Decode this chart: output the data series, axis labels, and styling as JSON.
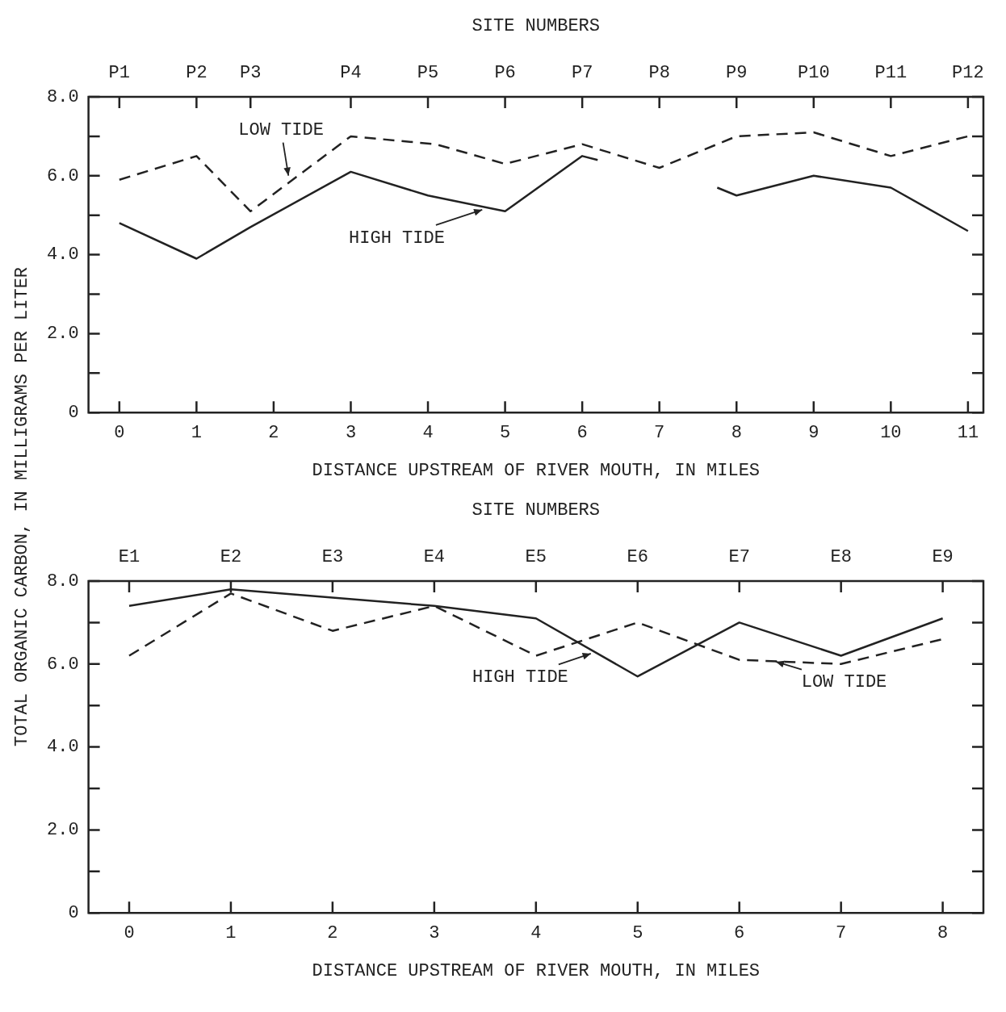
{
  "chart_data": [
    {
      "type": "line",
      "xlabel": "DISTANCE UPSTREAM OF RIVER MOUTH, IN MILES",
      "ylabel": "TOTAL ORGANIC CARBON, IN MILLIGRAMS PER LITER",
      "xlim": [
        -0.4,
        11.2
      ],
      "xticks": [
        0,
        1,
        2,
        3,
        4,
        5,
        6,
        7,
        8,
        9,
        10,
        11
      ],
      "ylim": [
        0,
        8
      ],
      "yticks": [
        0,
        {
          "value": 1,
          "label": null
        },
        {
          "value": 2,
          "label": "2.0"
        },
        {
          "value": 3,
          "label": null
        },
        {
          "value": 4,
          "label": "4.0"
        },
        {
          "value": 5,
          "label": null
        },
        {
          "value": 6,
          "label": "6.0"
        },
        {
          "value": 7,
          "label": null
        },
        {
          "value": 8,
          "label": "8.0"
        }
      ],
      "grid": false,
      "marker": "none",
      "series": [
        {
          "color": "#222222",
          "line_style": "solid",
          "x": [
            0,
            1,
            1.7,
            3,
            4,
            5,
            6,
            6.2,
            7,
            7.75,
            8,
            9,
            10,
            11
          ],
          "values": [
            4.8,
            3.9,
            4.7,
            6.1,
            5.5,
            5.1,
            6.5,
            6.4,
            null,
            5.7,
            5.5,
            6.0,
            5.7,
            4.6
          ]
        },
        {
          "color": "#222222",
          "line_style": "dashed",
          "x": [
            0,
            1,
            1.7,
            3,
            4.1,
            5,
            6,
            7,
            8,
            9,
            10,
            11
          ],
          "values": [
            5.9,
            6.5,
            5.1,
            7.0,
            6.8,
            6.3,
            6.8,
            6.2,
            7.0,
            7.1,
            6.5,
            7.0
          ]
        }
      ],
      "annotations": [
        {
          "text": "LOW TIDE",
          "x": 2.2,
          "y": 5.9
        },
        {
          "text": "HIGH TIDE",
          "x": 4.8,
          "y": 5.2
        },
        "SITE NUMBERS",
        {
          "text": "P1",
          "x": 0
        },
        {
          "text": "P2",
          "x": 1
        },
        {
          "text": "P3",
          "x": 1.7
        },
        {
          "text": "P4",
          "x": 3
        },
        {
          "text": "P5",
          "x": 4
        },
        {
          "text": "P6",
          "x": 5
        },
        {
          "text": "P7",
          "x": 6
        },
        {
          "text": "P8",
          "x": 7
        },
        {
          "text": "P9",
          "x": 8
        },
        {
          "text": "P10",
          "x": 9
        },
        {
          "text": "P11",
          "x": 10
        },
        {
          "text": "P12",
          "x": 11
        }
      ]
    },
    {
      "type": "line",
      "xlabel": "DISTANCE UPSTREAM OF RIVER MOUTH, IN MILES",
      "xlim": [
        -0.4,
        8.4
      ],
      "xticks": [
        0,
        1,
        2,
        3,
        4,
        5,
        6,
        7,
        8
      ],
      "ylim": [
        0,
        8
      ],
      "yticks": [
        0,
        {
          "value": 1,
          "label": null
        },
        {
          "value": 2,
          "label": "2.0"
        },
        {
          "value": 3,
          "label": null
        },
        {
          "value": 4,
          "label": "4.0"
        },
        {
          "value": 5,
          "label": null
        },
        {
          "value": 6,
          "label": "6.0"
        },
        {
          "value": 7,
          "label": null
        },
        {
          "value": 8,
          "label": "8.0"
        }
      ],
      "grid": false,
      "marker": "none",
      "series": [
        {
          "color": "#222222",
          "line_style": "solid",
          "x": [
            0,
            1,
            3,
            4,
            5,
            6,
            7,
            8
          ],
          "values": [
            7.4,
            7.8,
            7.4,
            7.1,
            5.7,
            7.0,
            6.2,
            7.1
          ]
        },
        {
          "color": "#222222",
          "line_style": "dashed",
          "x": [
            0,
            1,
            2,
            3,
            4,
            5,
            6,
            7,
            8
          ],
          "values": [
            6.2,
            7.7,
            6.8,
            7.4,
            6.2,
            7.0,
            6.1,
            6.0,
            6.6
          ]
        }
      ],
      "annotations": [
        {
          "text": "HIGH TIDE",
          "x": 4.6,
          "y": 6.3
        },
        {
          "text": "LOW TIDE",
          "x": 6.3,
          "y": 6.1
        },
        "SITE NUMBERS",
        {
          "text": "E1",
          "x": 0
        },
        {
          "text": "E2",
          "x": 1
        },
        {
          "text": "E3",
          "x": 2
        },
        {
          "text": "E4",
          "x": 3
        },
        {
          "text": "E5",
          "x": 4
        },
        {
          "text": "E6",
          "x": 5
        },
        {
          "text": "E7",
          "x": 6
        },
        {
          "text": "E8",
          "x": 7
        },
        {
          "text": "E9",
          "x": 8
        }
      ]
    }
  ]
}
